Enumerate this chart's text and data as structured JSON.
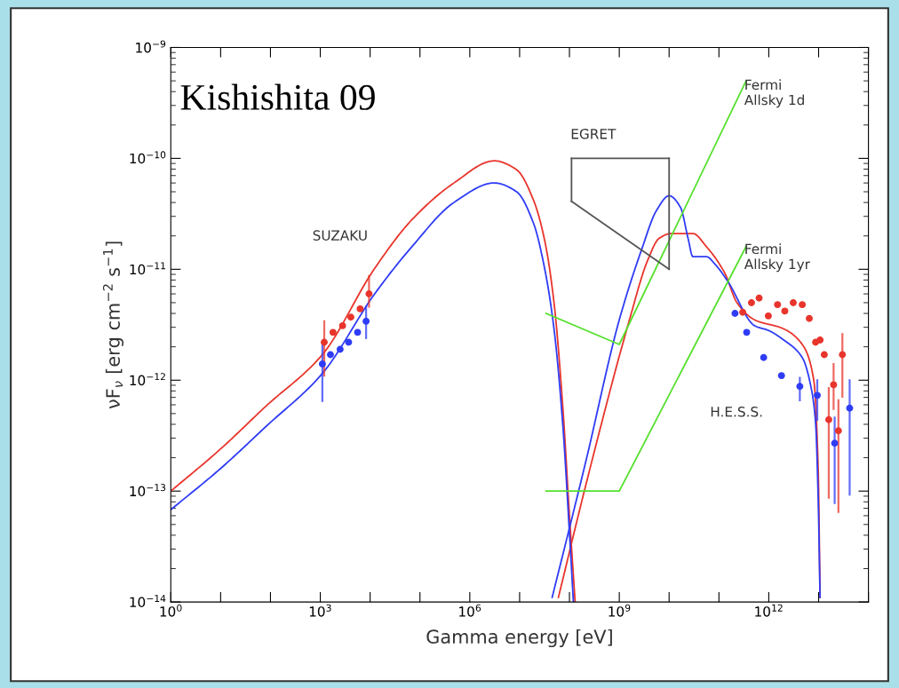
{
  "chart_data": {
    "type": "line",
    "xlabel": "Gamma energy [eV]",
    "ylabel": "νF$_{ν}$ [erg cm$^{−2}$ s$^{−1}$]",
    "log": "xy",
    "xlim": [
      1,
      100000000000000.0
    ],
    "ylim": [
      1e-14,
      1e-09
    ],
    "xticks": [
      {
        "value": 1,
        "label": "10$^{0}$"
      },
      {
        "value": 10,
        "label": null
      },
      {
        "value": 100,
        "label": null
      },
      {
        "value": 1000,
        "label": "10$^{3}$"
      },
      {
        "value": 10000.0,
        "label": null
      },
      {
        "value": 100000.0,
        "label": null
      },
      {
        "value": 1000000.0,
        "label": "10$^{6}$"
      },
      {
        "value": 10000000.0,
        "label": null
      },
      {
        "value": 100000000.0,
        "label": null
      },
      {
        "value": 1000000000.0,
        "label": "10$^{9}$"
      },
      {
        "value": 10000000000.0,
        "label": null
      },
      {
        "value": 100000000000.0,
        "label": null
      },
      {
        "value": 1000000000000.0,
        "label": "10$^{12}$"
      },
      {
        "value": 10000000000000.0,
        "label": null
      },
      {
        "value": 100000000000000.0,
        "label": null
      }
    ],
    "yticks": [
      {
        "value": 1e-14,
        "label": "10$^{−14}$"
      },
      {
        "value": 1e-13,
        "label": "10$^{−13}$"
      },
      {
        "value": 1e-12,
        "label": "10$^{−12}$"
      },
      {
        "value": 1e-11,
        "label": "10$^{−11}$"
      },
      {
        "value": 1e-10,
        "label": "10$^{−10}$"
      },
      {
        "value": 1e-09,
        "label": "10$^{−9}$"
      }
    ],
    "annotations": [
      "Kishishita 09",
      "SUZAKU",
      "EGRET",
      "Fermi\nAllsky 1d",
      "Fermi\nAllsky 1yr",
      "H.E.S.S."
    ],
    "series": [
      {
        "type": "line",
        "color": "#e8352c",
        "x": [
          1,
          10,
          80,
          1100,
          12000,
          69000,
          480000,
          3100000.0,
          8700000.0,
          19000000.0,
          32000000.0,
          49000000.0,
          74000000.0,
          100000000.0,
          130000000.0
        ],
        "values": [
          1e-13,
          2.4e-13,
          5.8e-13,
          1.7e-12,
          1e-11,
          2.8e-11,
          6e-11,
          9.5e-11,
          7.9e-11,
          4.2e-11,
          1.8e-11,
          5e-12,
          5.5e-13,
          6e-14,
          1e-14
        ]
      },
      {
        "type": "line",
        "color": "#e8352c",
        "x": [
          60000000.0,
          230000000.0,
          1600000000.0,
          3700000000.0,
          6300000000.0,
          11000000000.0,
          30000000000.0,
          56000000000.0,
          130000000000.0,
          230000000000.0,
          520000000000.0,
          2000000000000.0,
          4700000000000.0,
          8000000000000.0,
          9800000000000.0,
          10700000000000.0
        ],
        "values": [
          1.1e-14,
          1.3e-13,
          3.5e-12,
          1.2e-11,
          1.9e-11,
          2.1e-11,
          2.1e-11,
          1.6e-11,
          9.3e-12,
          5e-12,
          3.5e-12,
          2.9e-12,
          2.1e-12,
          1e-12,
          1.6e-13,
          1.1e-14
        ]
      },
      {
        "type": "line",
        "color": "#2f3cf5",
        "x": [
          1,
          10,
          80,
          1100,
          12000,
          69000,
          480000,
          3100000.0,
          8700000.0,
          19000000.0,
          32000000.0,
          49000000.0,
          74000000.0,
          100000000.0,
          120000000.0
        ],
        "values": [
          6.8e-14,
          1.6e-13,
          3.8e-13,
          1.15e-12,
          5.9e-12,
          1.6e-11,
          4e-11,
          6e-11,
          5e-11,
          2.6e-11,
          1e-11,
          2.9e-12,
          3.8e-13,
          4.2e-14,
          1e-14
        ]
      },
      {
        "type": "line",
        "color": "#2f3cf5",
        "x": [
          45000000.0,
          210000000.0,
          1000000000.0,
          2800000000.0,
          5600000000.0,
          10000000000.0,
          17000000000.0,
          24000000000.0,
          30000000000.0,
          56000000000.0,
          85000000000.0,
          150000000000.0,
          520000000000.0,
          1000000000000.0,
          2000000000000.0,
          4700000000000.0,
          7100000000000.0,
          8700000000000.0,
          9800000000000.0,
          10700000000000.0
        ],
        "values": [
          1.1e-14,
          1.8e-13,
          3.5e-12,
          1.5e-11,
          3.4e-11,
          4.6e-11,
          3.6e-11,
          1.9e-11,
          1.3e-11,
          1.3e-11,
          1.1e-11,
          7.8e-12,
          3.1e-12,
          2.8e-12,
          2.3e-12,
          1.6e-12,
          8.5e-13,
          4.1e-13,
          8.7e-14,
          1.1e-14
        ]
      },
      {
        "type": "line",
        "color": "#55e02d",
        "x": [
          34000000.0,
          1000000000.0,
          350000000000.0
        ],
        "values": [
          4e-12,
          2.1e-12,
          5e-10
        ]
      },
      {
        "type": "line",
        "color": "#55e02d",
        "x": [
          34000000.0,
          1000000000.0,
          350000000000.0
        ],
        "values": [
          1e-13,
          1e-13,
          1.6e-11
        ]
      },
      {
        "color": "#555555",
        "x": [
          110000000.0,
          10000000000.0
        ],
        "values": [
          1e-10,
          1e-10
        ]
      },
      {
        "color": "#555555",
        "x": [
          110000000.0,
          10000000000.0
        ],
        "values": [
          4.1e-11,
          1e-11
        ]
      },
      {
        "color": "#555555",
        "x": [
          110000000.0,
          110000000.0
        ],
        "values": [
          4.1e-11,
          1e-10
        ]
      },
      {
        "color": "#555555",
        "x": [
          10000000000.0,
          10000000000.0
        ],
        "values": [
          1e-11,
          1e-10
        ]
      },
      {
        "type": "scatter",
        "color": "#e8352c",
        "marker": "circle",
        "x": [
          1200,
          1800,
          2800,
          4100,
          6300,
          9500
        ],
        "values": [
          2.2e-12,
          2.7e-12,
          3.1e-12,
          3.7e-12,
          4.4e-12,
          6e-12
        ],
        "errors": [
          [
            1.1e-12,
            3.4e-12
          ],
          null,
          null,
          null,
          null,
          [
            4.6e-12,
            8.7e-12
          ]
        ]
      },
      {
        "type": "scatter",
        "color": "#2f3cf5",
        "marker": "circle",
        "x": [
          1100,
          1600,
          2500,
          3700,
          5600,
          8300
        ],
        "values": [
          1.4e-12,
          1.7e-12,
          1.9e-12,
          2.2e-12,
          2.7e-12,
          3.4e-12
        ],
        "errors": [
          [
            6.5e-13,
            2.2e-12
          ],
          null,
          null,
          null,
          null,
          [
            2.4e-12,
            4.6e-12
          ]
        ]
      },
      {
        "type": "scatter",
        "color": "#e8352c",
        "marker": "circle",
        "x": [
          300000000000.0,
          450000000000.0,
          640000000000.0,
          980000000000.0,
          1500000000000.0,
          2100000000000.0,
          3100000000000.0,
          4700000000000.0,
          6500000000000.0,
          8700000000000.0,
          10700000000000.0,
          13000000000000.0,
          16000000000000.0,
          20000000000000.0,
          25000000000000.0,
          30000000000000.0
        ],
        "values": [
          4.1e-12,
          5e-12,
          5.5e-12,
          3.8e-12,
          4.8e-12,
          4.2e-12,
          5e-12,
          4.8e-12,
          3.6e-12,
          2.2e-12,
          2.3e-12,
          1.7e-12,
          4.4e-13,
          9.1e-13,
          3.5e-13,
          1.7e-12
        ],
        "errors": [
          null,
          null,
          null,
          null,
          null,
          null,
          null,
          null,
          null,
          null,
          null,
          null,
          [
            8.7e-14,
            8.5e-13
          ],
          [
            5.5e-13,
            1.4e-12
          ],
          [
            6.5e-14,
            6.6e-13
          ],
          [
            7.1e-13,
            2.6e-12
          ]
        ]
      },
      {
        "type": "scatter",
        "color": "#2f3cf5",
        "marker": "circle",
        "x": [
          210000000000.0,
          360000000000.0,
          790000000000.0,
          1800000000000.0,
          4200000000000.0,
          9400000000000.0,
          21000000000000.0,
          42000000000000.0
        ],
        "values": [
          4e-12,
          2.7e-12,
          1.6e-12,
          1.1e-12,
          8.8e-13,
          7.3e-13,
          2.7e-13,
          5.6e-13
        ],
        "errors": [
          null,
          null,
          null,
          null,
          [
            6.6e-13,
            1.05e-12
          ],
          [
            4.4e-13,
            1e-12
          ],
          [
            7.8e-14,
            4.6e-13
          ],
          [
            9.3e-14,
            1e-12
          ]
        ]
      }
    ]
  }
}
